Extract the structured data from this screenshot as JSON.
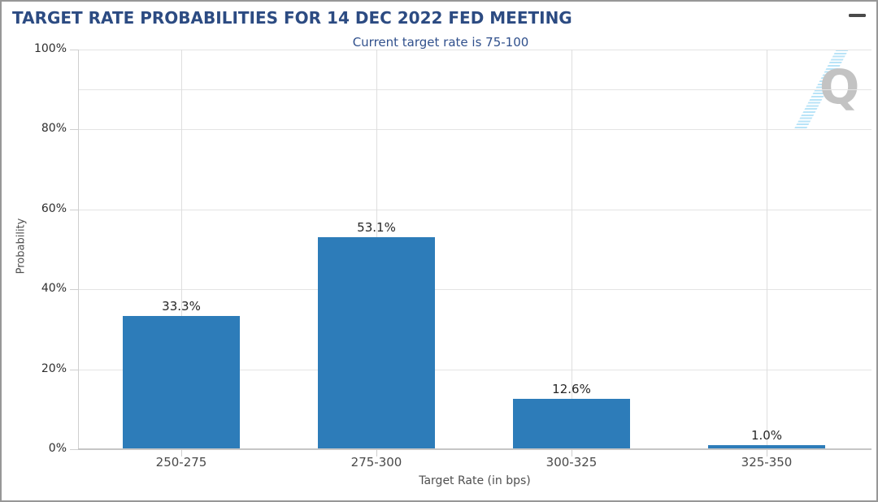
{
  "header": {
    "title": "TARGET RATE PROBABILITIES FOR 14 DEC 2022 FED MEETING",
    "menu_icon": "hamburger-icon"
  },
  "chart_data": {
    "type": "bar",
    "title": "TARGET RATE PROBABILITIES FOR 14 DEC 2022 FED MEETING",
    "subtitle": "Current target rate is 75-100",
    "xlabel": "Target Rate (in bps)",
    "ylabel": "Probability",
    "categories": [
      "250-275",
      "275-300",
      "300-325",
      "325-350"
    ],
    "values": [
      33.3,
      53.1,
      12.6,
      1.0
    ],
    "bar_labels": [
      "33.3%",
      "53.1%",
      "12.6%",
      "1.0%"
    ],
    "ylim": [
      0,
      100
    ],
    "y_tick_values": [
      0,
      20,
      40,
      60,
      80,
      100
    ],
    "y_tick_labels": [
      "0%",
      "20%",
      "40%",
      "60%",
      "80%",
      "100%"
    ],
    "gridline_values": [
      20,
      40,
      60,
      80,
      90,
      100
    ],
    "grid": true,
    "legend": "none",
    "bar_color": "#2d7cb9"
  },
  "watermark": {
    "letter": "Q",
    "letter_color": "#c3c3c3",
    "streak_color": "#b5e2f7"
  },
  "colors": {
    "title": "#2c4b82",
    "subtitle": "#30508c",
    "bar": "#2d7cb9",
    "axis_text": "#4a4a4a",
    "value_label": "#262626"
  }
}
